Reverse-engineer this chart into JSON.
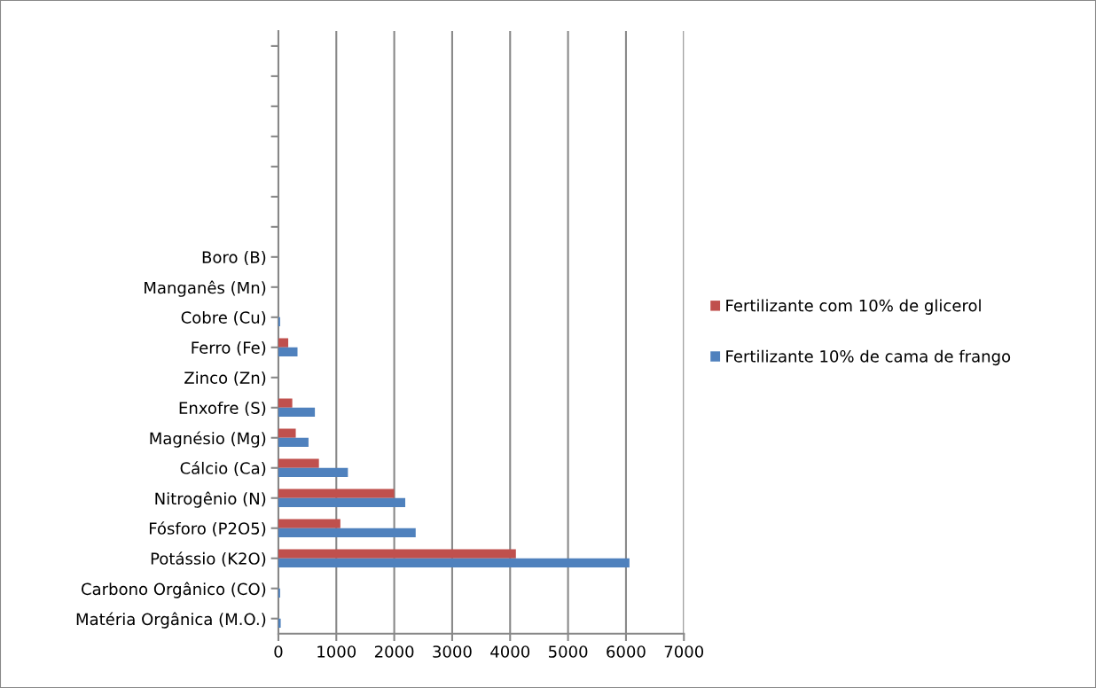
{
  "chart_data": {
    "type": "bar",
    "orientation": "horizontal",
    "categories": [
      null,
      null,
      null,
      null,
      null,
      null,
      null,
      "Boro (B)",
      "Manganês (Mn)",
      "Cobre (Cu)",
      "Ferro (Fe)",
      "Zinco (Zn)",
      "Enxofre (S)",
      "Magnésio (Mg)",
      "Cálcio (Ca)",
      "Nitrogênio (N)",
      "Fósforo (P2O5)",
      "Potássio (K2O)",
      "Carbono Orgânico (CO)",
      "Matéria Orgânica (M.O.)"
    ],
    "series": [
      {
        "name": "Fertilizante com 10% de glicerol",
        "color": "#c0504d",
        "values": [
          null,
          null,
          null,
          null,
          null,
          null,
          null,
          null,
          null,
          null,
          170,
          null,
          240,
          300,
          700,
          2000,
          1070,
          4100,
          null,
          null
        ]
      },
      {
        "name": "Fertilizante 10% de cama de frango",
        "color": "#4f81bd",
        "values": [
          null,
          null,
          null,
          null,
          null,
          null,
          null,
          null,
          null,
          30,
          330,
          null,
          630,
          520,
          1200,
          2190,
          2370,
          6060,
          30,
          40
        ]
      }
    ],
    "xlim": [
      0,
      7000
    ],
    "xticks": [
      0,
      1000,
      2000,
      3000,
      4000,
      5000,
      6000,
      7000
    ],
    "grid": "x",
    "legend": "right"
  }
}
